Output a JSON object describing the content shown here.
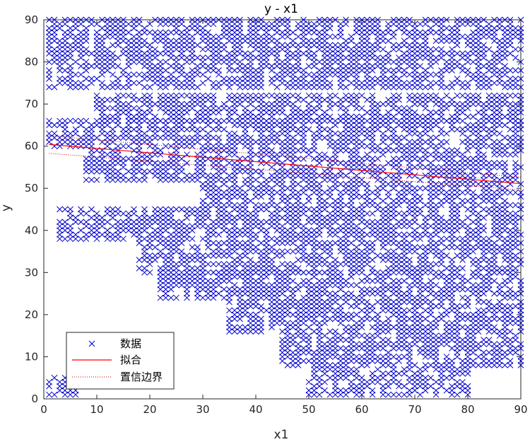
{
  "chart_data": {
    "type": "scatter",
    "title": "y - x1",
    "xlabel": "x1",
    "ylabel": "y",
    "xlim": [
      0,
      90
    ],
    "ylim": [
      0,
      90
    ],
    "xticks": [
      0,
      10,
      20,
      30,
      40,
      50,
      60,
      70,
      80,
      90
    ],
    "yticks": [
      0,
      10,
      20,
      30,
      40,
      50,
      60,
      70,
      80,
      90
    ],
    "grid": false,
    "legend_position": "bottom-left",
    "colors": {
      "data": "#0000cd",
      "fit": "#ff0000",
      "bounds": "#c00000"
    },
    "series": [
      {
        "name": "数据",
        "kind": "markers",
        "marker": "x",
        "bands": [
          {
            "x": [
              1,
              90
            ],
            "y": [
              82,
              90
            ]
          },
          {
            "x": [
              1,
              90
            ],
            "y": [
              74,
              81
            ]
          },
          {
            "x": [
              10,
              90
            ],
            "y": [
              66,
              72
            ]
          },
          {
            "x": [
              1,
              90
            ],
            "y": [
              60,
              66
            ]
          },
          {
            "x": [
              8,
              90
            ],
            "y": [
              52,
              59
            ]
          },
          {
            "x": [
              30,
              90
            ],
            "y": [
              46,
              51
            ]
          },
          {
            "x": [
              3,
              90
            ],
            "y": [
              38,
              45
            ]
          },
          {
            "x": [
              18,
              90
            ],
            "y": [
              30,
              37
            ]
          },
          {
            "x": [
              22,
              90
            ],
            "y": [
              24,
              30
            ]
          },
          {
            "x": [
              35,
              90
            ],
            "y": [
              16,
              23
            ]
          },
          {
            "x": [
              45,
              90
            ],
            "y": [
              8,
              15
            ]
          },
          {
            "x": [
              50,
              80
            ],
            "y": [
              1,
              7
            ]
          },
          {
            "x": [
              1,
              6
            ],
            "y": [
              1,
              5
            ]
          }
        ]
      },
      {
        "name": "拟合",
        "kind": "line",
        "x": [
          1,
          90
        ],
        "y": [
          60.4,
          51.1
        ]
      },
      {
        "name": "置信边界",
        "kind": "dotted",
        "x": [
          1,
          90
        ],
        "y": [
          62.5,
          52.6
        ],
        "y2": [
          58.3,
          49.6
        ]
      }
    ]
  }
}
